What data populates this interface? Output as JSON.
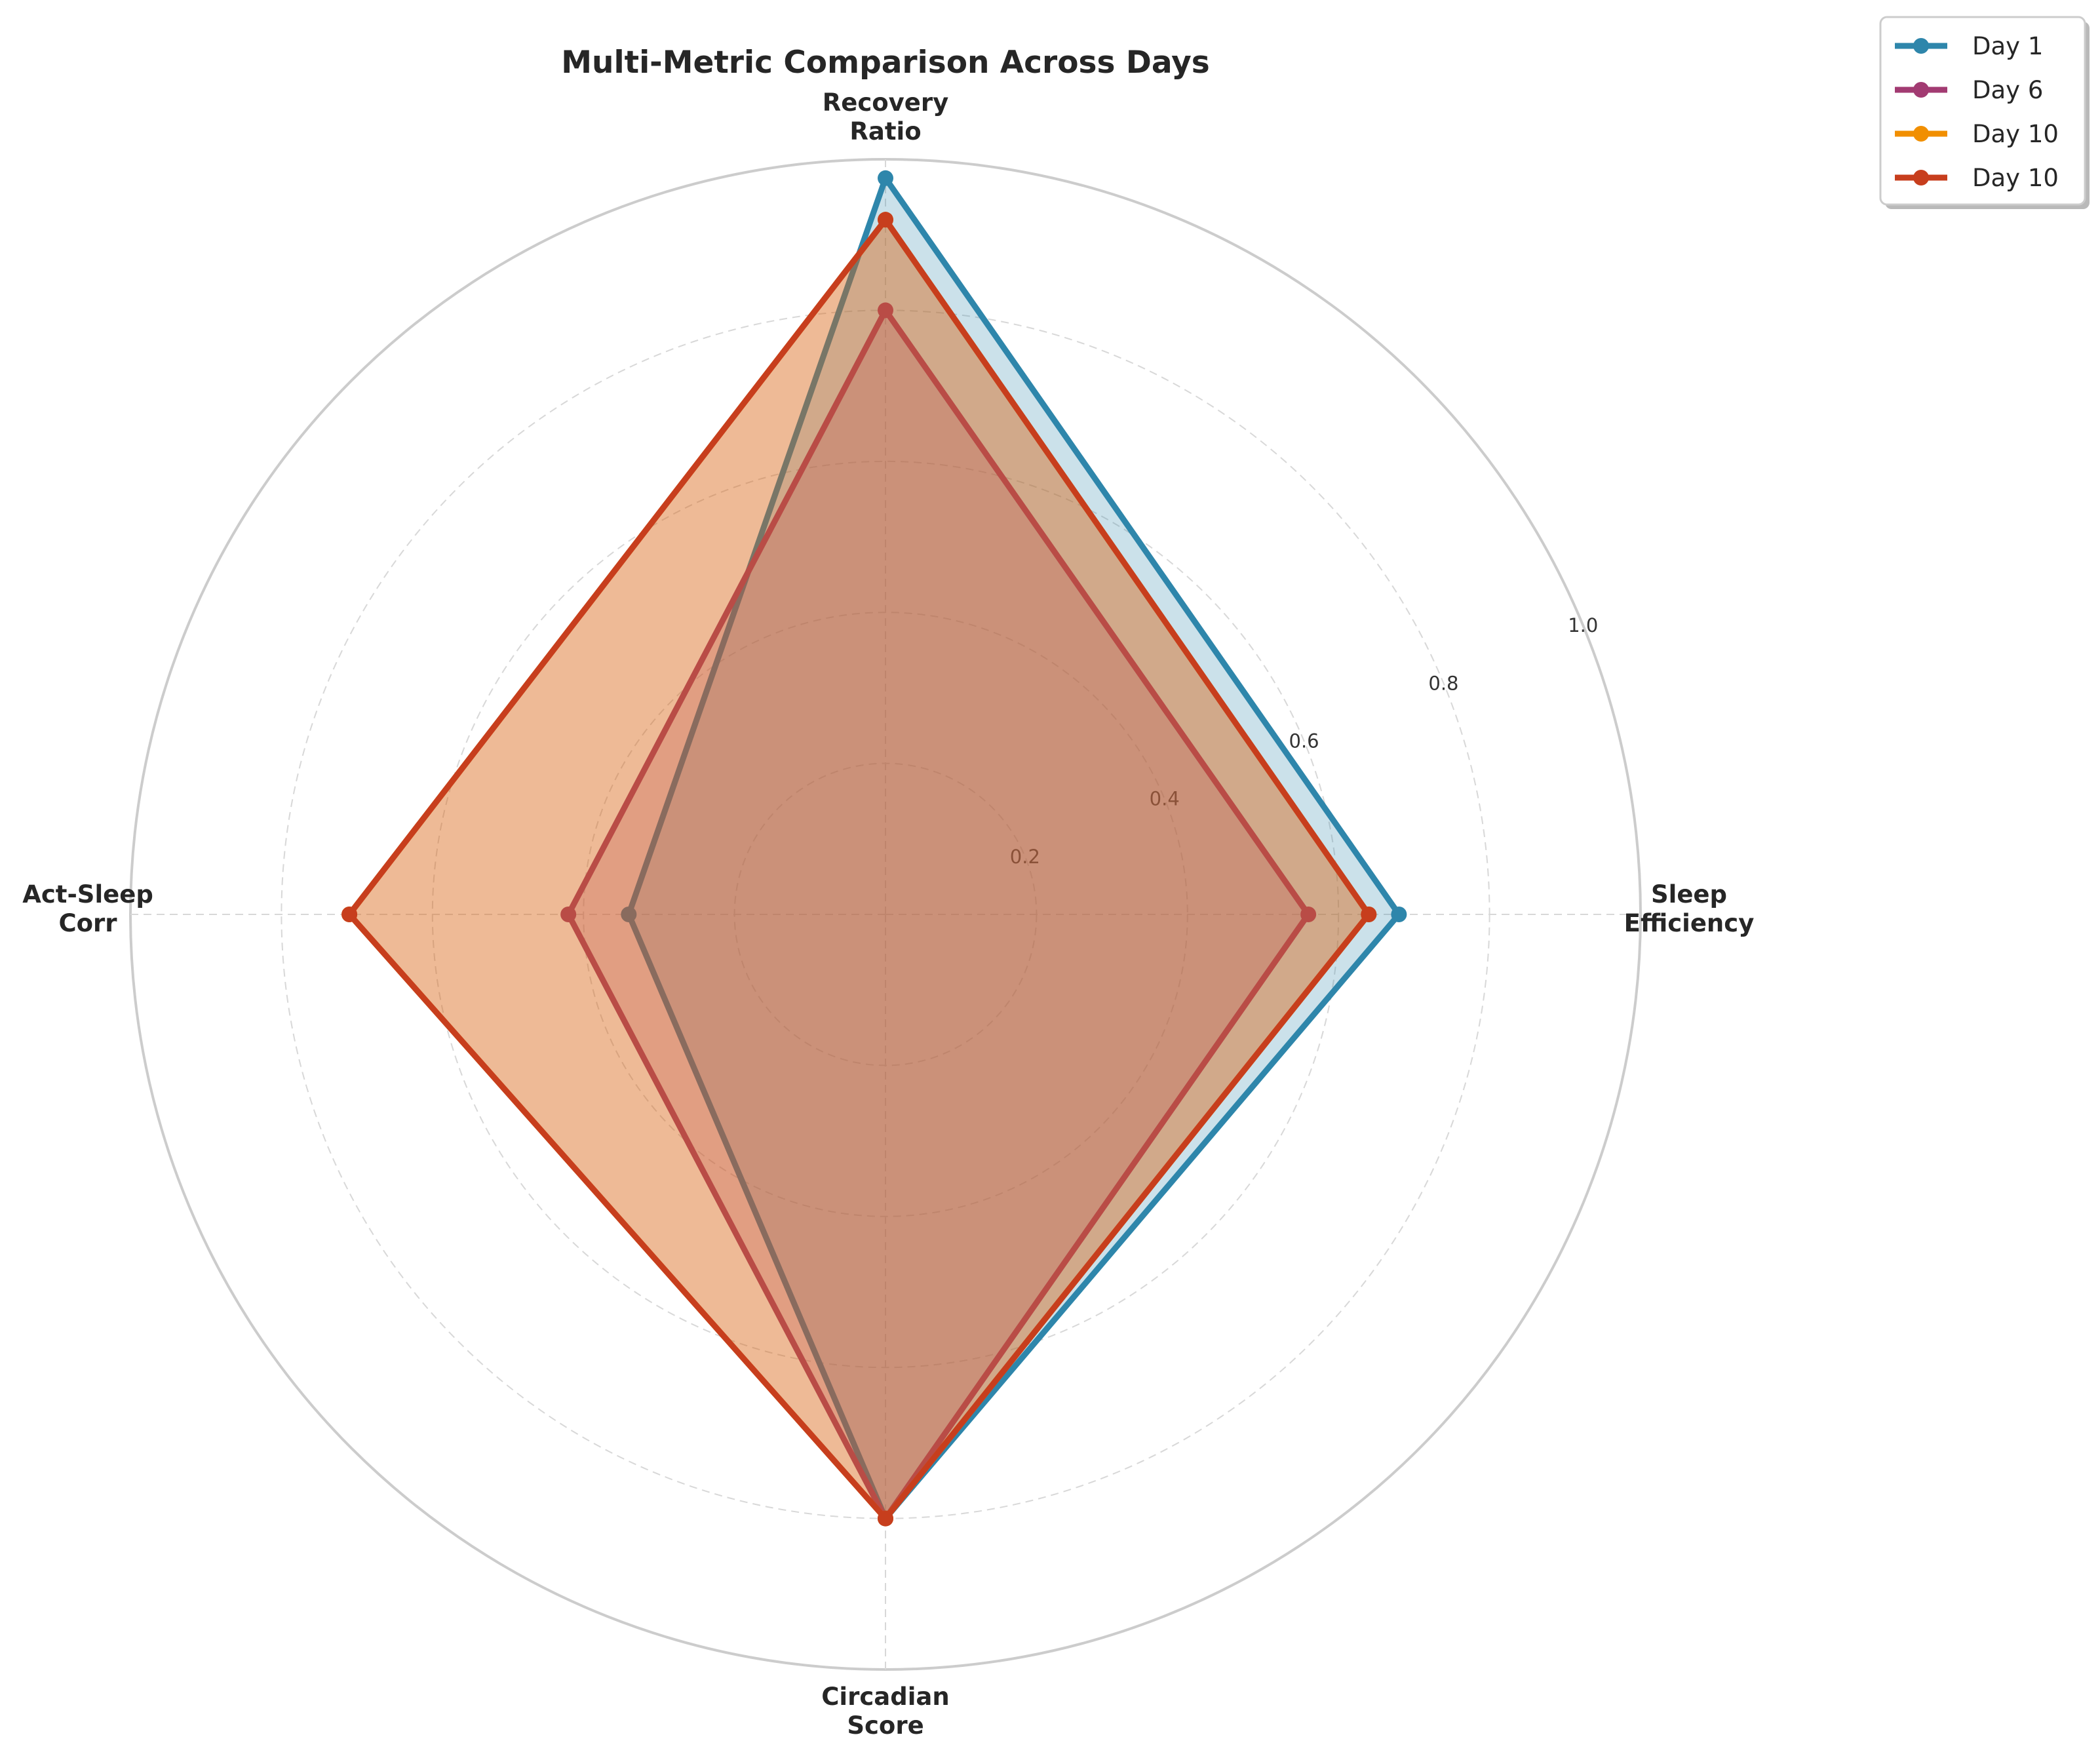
{
  "chart_data": {
    "type": "radar",
    "title": "Multi-Metric Comparison Across Days",
    "axes": [
      {
        "key": "sleep_efficiency",
        "lines": [
          "Sleep",
          "Efficiency"
        ]
      },
      {
        "key": "recovery_ratio",
        "lines": [
          "Recovery",
          "Ratio"
        ]
      },
      {
        "key": "act_sleep_corr",
        "lines": [
          "Act-Sleep",
          "Corr"
        ]
      },
      {
        "key": "circadian_score",
        "lines": [
          "Circadian",
          "Score"
        ]
      }
    ],
    "rlim": [
      0,
      1.0
    ],
    "rticks": [
      0.2,
      0.4,
      0.6,
      0.8,
      1.0
    ],
    "rtick_labels": [
      "0.2",
      "0.4",
      "0.6",
      "0.8",
      "1.0"
    ],
    "grid": true,
    "legend_position": "top-right",
    "series": [
      {
        "name": "Day 1",
        "color": "#2e86ab",
        "values": [
          0.68,
          0.975,
          0.34,
          0.8
        ]
      },
      {
        "name": "Day 6",
        "color": "#a23b72",
        "values": [
          0.56,
          0.8,
          0.42,
          0.8
        ]
      },
      {
        "name": "Day 10",
        "color": "#f18f01",
        "values": [
          0.64,
          0.92,
          0.71,
          0.8
        ]
      },
      {
        "name": "Day 10",
        "color": "#c73e1d",
        "values": [
          0.64,
          0.92,
          0.71,
          0.8
        ]
      }
    ]
  }
}
